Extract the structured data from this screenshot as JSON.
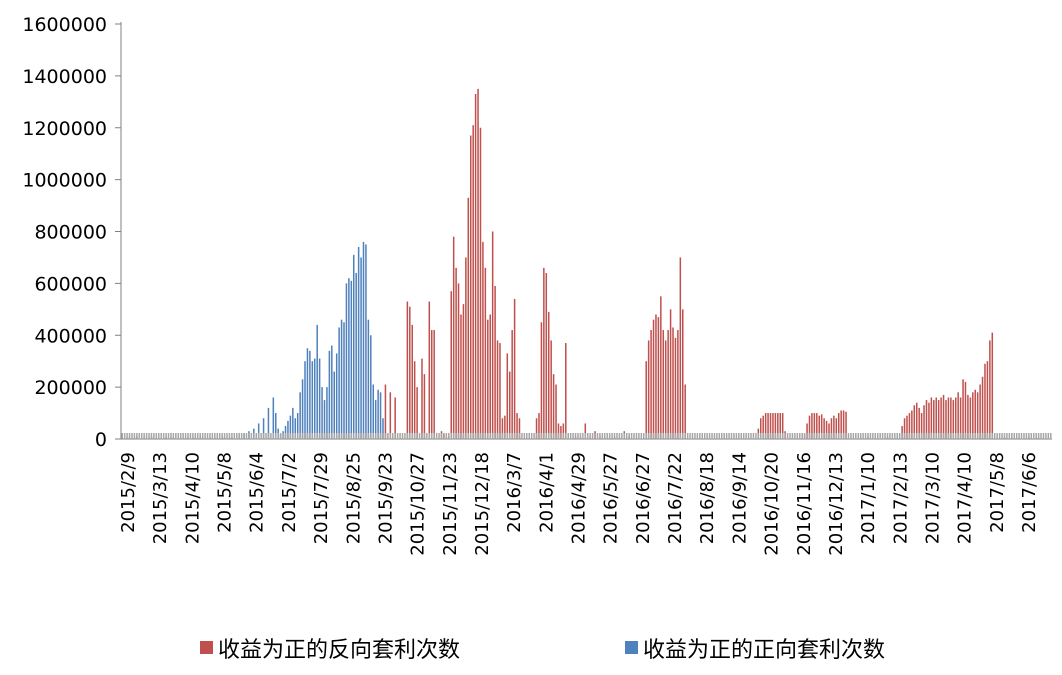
{
  "chart_data": {
    "type": "bar",
    "title": "",
    "xlabel": "",
    "ylabel": "",
    "ylim": [
      0,
      1600000
    ],
    "yticks": [
      "0",
      "200000",
      "400000",
      "600000",
      "800000",
      "1000000",
      "1200000",
      "1400000",
      "1600000"
    ],
    "xtick_labels": [
      "2015/2/9",
      "2015/3/13",
      "2015/4/10",
      "2015/5/8",
      "2015/6/4",
      "2015/7/2",
      "2015/7/29",
      "2015/8/25",
      "2015/9/23",
      "2015/10/27",
      "2015/11/23",
      "2015/12/18",
      "2016/3/7",
      "2016/4/1",
      "2016/4/29",
      "2016/5/27",
      "2016/6/27",
      "2016/7/22",
      "2016/8/18",
      "2016/9/14",
      "2016/10/20",
      "2016/11/16",
      "2016/12/13",
      "2017/1/10",
      "2017/2/13",
      "2017/3/10",
      "2017/4/10",
      "2017/5/8",
      "2017/6/6"
    ],
    "grid": false,
    "legend_position": "bottom",
    "series": [
      {
        "name": "收益为正的反向套利次数",
        "color": "#C0504D",
        "values": [
          [
            0,
            8000
          ],
          [
            3,
            6000
          ],
          [
            6,
            10000
          ],
          [
            9,
            7000
          ],
          [
            12,
            9000
          ],
          [
            15,
            6000
          ],
          [
            18,
            8000
          ],
          [
            21,
            7000
          ],
          [
            24,
            9000
          ],
          [
            27,
            6000
          ],
          [
            30,
            8000
          ],
          [
            33,
            7000
          ],
          [
            36,
            5000
          ],
          [
            39,
            7000
          ],
          [
            42,
            8000
          ],
          [
            45,
            6000
          ],
          [
            108,
            210000
          ],
          [
            110,
            180000
          ],
          [
            112,
            160000
          ],
          [
            117,
            530000
          ],
          [
            118,
            510000
          ],
          [
            119,
            440000
          ],
          [
            120,
            300000
          ],
          [
            121,
            200000
          ],
          [
            123,
            310000
          ],
          [
            124,
            250000
          ],
          [
            126,
            530000
          ],
          [
            127,
            420000
          ],
          [
            128,
            420000
          ],
          [
            131,
            30000
          ],
          [
            132,
            20000
          ],
          [
            133,
            10000
          ],
          [
            134,
            10000
          ],
          [
            135,
            570000
          ],
          [
            136,
            780000
          ],
          [
            137,
            660000
          ],
          [
            138,
            600000
          ],
          [
            139,
            480000
          ],
          [
            140,
            520000
          ],
          [
            141,
            700000
          ],
          [
            142,
            930000
          ],
          [
            143,
            1170000
          ],
          [
            144,
            1210000
          ],
          [
            145,
            1330000
          ],
          [
            146,
            1350000
          ],
          [
            147,
            1200000
          ],
          [
            148,
            760000
          ],
          [
            149,
            660000
          ],
          [
            150,
            460000
          ],
          [
            151,
            480000
          ],
          [
            152,
            800000
          ],
          [
            153,
            590000
          ],
          [
            154,
            380000
          ],
          [
            155,
            370000
          ],
          [
            156,
            80000
          ],
          [
            157,
            90000
          ],
          [
            158,
            330000
          ],
          [
            159,
            260000
          ],
          [
            160,
            420000
          ],
          [
            161,
            540000
          ],
          [
            162,
            100000
          ],
          [
            163,
            80000
          ],
          [
            170,
            80000
          ],
          [
            171,
            100000
          ],
          [
            172,
            450000
          ],
          [
            173,
            660000
          ],
          [
            174,
            640000
          ],
          [
            175,
            490000
          ],
          [
            176,
            380000
          ],
          [
            177,
            250000
          ],
          [
            178,
            210000
          ],
          [
            179,
            60000
          ],
          [
            180,
            50000
          ],
          [
            181,
            60000
          ],
          [
            182,
            370000
          ],
          [
            186,
            10000
          ],
          [
            188,
            8000
          ],
          [
            190,
            60000
          ],
          [
            192,
            10000
          ],
          [
            194,
            30000
          ],
          [
            196,
            10000
          ],
          [
            198,
            8000
          ],
          [
            200,
            6000
          ],
          [
            202,
            8000
          ],
          [
            204,
            6000
          ],
          [
            206,
            30000
          ],
          [
            208,
            10000
          ],
          [
            215,
            300000
          ],
          [
            216,
            380000
          ],
          [
            217,
            420000
          ],
          [
            218,
            460000
          ],
          [
            219,
            480000
          ],
          [
            220,
            470000
          ],
          [
            221,
            550000
          ],
          [
            222,
            420000
          ],
          [
            223,
            380000
          ],
          [
            224,
            420000
          ],
          [
            225,
            500000
          ],
          [
            226,
            430000
          ],
          [
            227,
            390000
          ],
          [
            228,
            420000
          ],
          [
            229,
            700000
          ],
          [
            230,
            500000
          ],
          [
            231,
            210000
          ],
          [
            261,
            40000
          ],
          [
            262,
            80000
          ],
          [
            263,
            90000
          ],
          [
            264,
            100000
          ],
          [
            265,
            100000
          ],
          [
            266,
            100000
          ],
          [
            267,
            100000
          ],
          [
            268,
            100000
          ],
          [
            269,
            100000
          ],
          [
            270,
            100000
          ],
          [
            271,
            100000
          ],
          [
            272,
            30000
          ],
          [
            280,
            20000
          ],
          [
            281,
            60000
          ],
          [
            282,
            90000
          ],
          [
            283,
            100000
          ],
          [
            284,
            100000
          ],
          [
            285,
            100000
          ],
          [
            286,
            90000
          ],
          [
            287,
            95000
          ],
          [
            288,
            80000
          ],
          [
            289,
            70000
          ],
          [
            290,
            60000
          ],
          [
            291,
            80000
          ],
          [
            292,
            90000
          ],
          [
            293,
            80000
          ],
          [
            294,
            100000
          ],
          [
            295,
            110000
          ],
          [
            296,
            110000
          ],
          [
            297,
            105000
          ],
          [
            303,
            10000
          ],
          [
            306,
            8000
          ],
          [
            310,
            6000
          ],
          [
            314,
            8000
          ],
          [
            318,
            6000
          ],
          [
            320,
            50000
          ],
          [
            321,
            80000
          ],
          [
            322,
            90000
          ],
          [
            323,
            100000
          ],
          [
            324,
            110000
          ],
          [
            325,
            130000
          ],
          [
            326,
            140000
          ],
          [
            327,
            120000
          ],
          [
            328,
            100000
          ],
          [
            329,
            130000
          ],
          [
            330,
            150000
          ],
          [
            331,
            140000
          ],
          [
            332,
            160000
          ],
          [
            333,
            150000
          ],
          [
            334,
            160000
          ],
          [
            335,
            150000
          ],
          [
            336,
            160000
          ],
          [
            337,
            170000
          ],
          [
            338,
            150000
          ],
          [
            339,
            160000
          ],
          [
            340,
            160000
          ],
          [
            341,
            150000
          ],
          [
            342,
            160000
          ],
          [
            343,
            180000
          ],
          [
            344,
            160000
          ],
          [
            345,
            230000
          ],
          [
            346,
            220000
          ],
          [
            347,
            170000
          ],
          [
            348,
            160000
          ],
          [
            349,
            180000
          ],
          [
            350,
            190000
          ],
          [
            351,
            180000
          ],
          [
            352,
            210000
          ],
          [
            353,
            240000
          ],
          [
            354,
            290000
          ],
          [
            355,
            300000
          ],
          [
            356,
            380000
          ],
          [
            357,
            410000
          ],
          [
            362,
            8000
          ],
          [
            365,
            10000
          ],
          [
            368,
            6000
          ],
          [
            372,
            8000
          ],
          [
            376,
            6000
          ]
        ]
      },
      {
        "name": "收益为正的正向套利次数",
        "color": "#4F81BD",
        "values": [
          [
            2,
            5000
          ],
          [
            5,
            6000
          ],
          [
            8,
            4000
          ],
          [
            11,
            5000
          ],
          [
            14,
            5000
          ],
          [
            17,
            4000
          ],
          [
            20,
            6000
          ],
          [
            23,
            5000
          ],
          [
            26,
            4000
          ],
          [
            29,
            5000
          ],
          [
            32,
            6000
          ],
          [
            35,
            4000
          ],
          [
            38,
            6000
          ],
          [
            41,
            5000
          ],
          [
            44,
            6000
          ],
          [
            48,
            15000
          ],
          [
            50,
            20000
          ],
          [
            52,
            30000
          ],
          [
            54,
            40000
          ],
          [
            56,
            60000
          ],
          [
            58,
            80000
          ],
          [
            60,
            120000
          ],
          [
            62,
            160000
          ],
          [
            63,
            100000
          ],
          [
            64,
            40000
          ],
          [
            65,
            20000
          ],
          [
            66,
            30000
          ],
          [
            67,
            50000
          ],
          [
            68,
            70000
          ],
          [
            69,
            90000
          ],
          [
            70,
            120000
          ],
          [
            71,
            80000
          ],
          [
            72,
            100000
          ],
          [
            73,
            180000
          ],
          [
            74,
            230000
          ],
          [
            75,
            300000
          ],
          [
            76,
            350000
          ],
          [
            77,
            340000
          ],
          [
            78,
            300000
          ],
          [
            79,
            310000
          ],
          [
            80,
            440000
          ],
          [
            81,
            310000
          ],
          [
            82,
            200000
          ],
          [
            83,
            150000
          ],
          [
            84,
            200000
          ],
          [
            85,
            340000
          ],
          [
            86,
            360000
          ],
          [
            87,
            260000
          ],
          [
            88,
            330000
          ],
          [
            89,
            430000
          ],
          [
            90,
            460000
          ],
          [
            91,
            450000
          ],
          [
            92,
            600000
          ],
          [
            93,
            620000
          ],
          [
            94,
            610000
          ],
          [
            95,
            710000
          ],
          [
            96,
            640000
          ],
          [
            97,
            740000
          ],
          [
            98,
            700000
          ],
          [
            99,
            760000
          ],
          [
            100,
            750000
          ],
          [
            101,
            460000
          ],
          [
            102,
            400000
          ],
          [
            103,
            210000
          ],
          [
            104,
            150000
          ],
          [
            105,
            190000
          ],
          [
            106,
            180000
          ],
          [
            107,
            80000
          ]
        ]
      }
    ]
  }
}
